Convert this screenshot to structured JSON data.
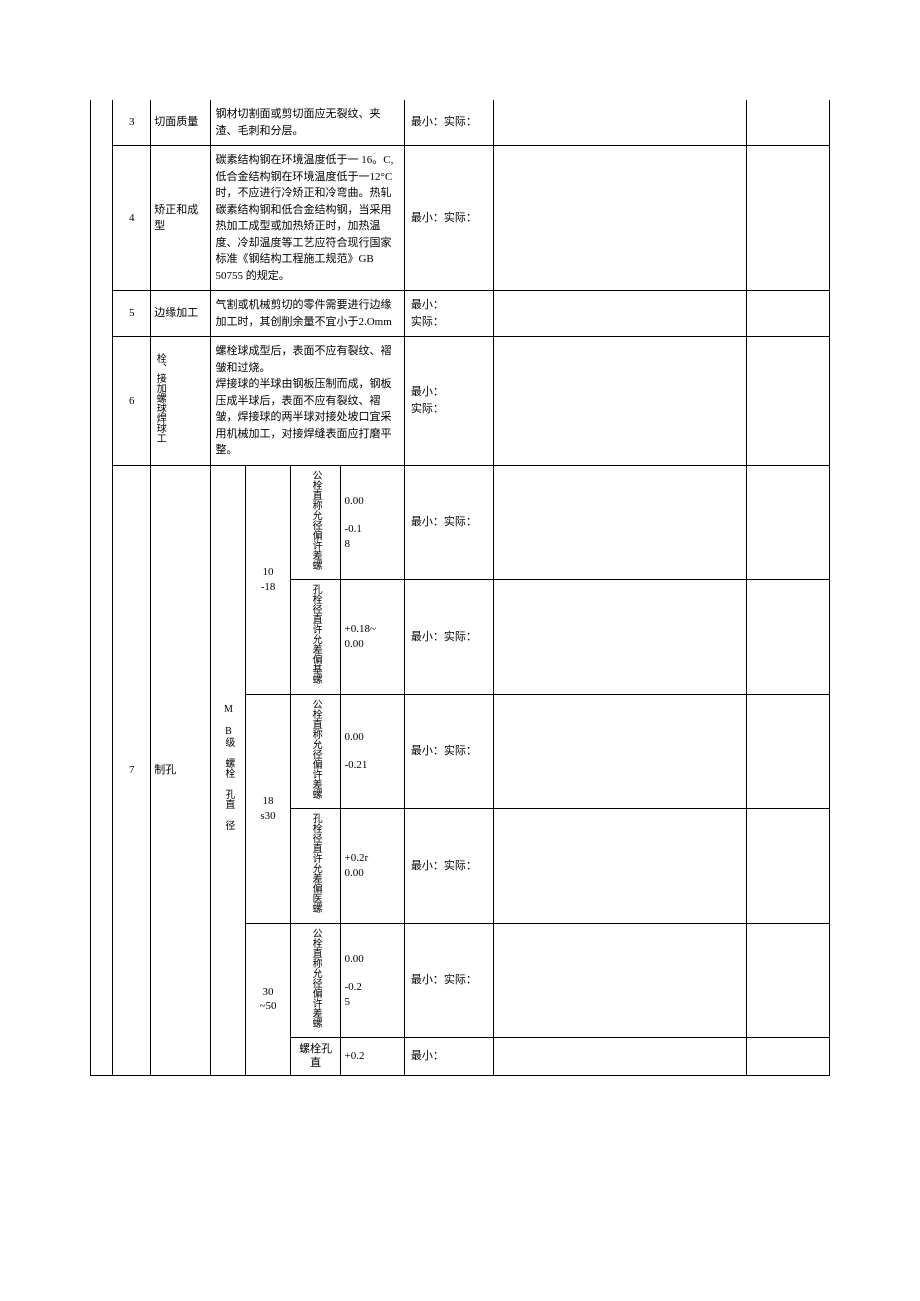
{
  "rows": {
    "r3": {
      "num": "3",
      "name": "切面质量",
      "desc": "钢材切割面或剪切面应无裂纹、夹渣、毛刺和分层。",
      "req": "最小：实际："
    },
    "r4": {
      "num": "4",
      "name": "矫正和成型",
      "desc": "碳素结构钢在环境温度低于一 16。C,低合金结构钢在环境温度低于一12°C 时，不应进行冷矫正和冷弯曲。热轧碳素结构钢和低合金结构钢，当采用热加工成型或加热矫正时，加热温度、冷却温度等工艺应符合现行国家标准《钢结构工程施工规范》GB\n50755 的规定。",
      "req": "最小：实际："
    },
    "r5": {
      "num": "5",
      "name": "边缘加工",
      "desc": "气割或机械剪切的零件需要进行边缘加工时，其创削余量不宜小于2.Omm",
      "req": "最小：\n实际："
    },
    "r6": {
      "num": "6",
      "name": "栓、接加螺球焊球工",
      "desc": "螺栓球成型后，表面不应有裂纹、褶皱和过烧。\n焊接球的半球由钢板压制而成，钢板压成半球后，表面不应有裂纹、褶皱，焊接球的两半球对接处坡口宜采用机械加工，对接焊缝表面应打磨平整。",
      "req": "最小：\n实际："
    },
    "r7": {
      "num": "7",
      "name": "制孔",
      "group_label": "M B级 螺栓 孔直 径",
      "ranges": {
        "a": {
          "range": "10\n-18",
          "d1": {
            "label": "公栓直称允径偏许差螺",
            "val": "0.00\n\n-0.1\n8",
            "req": "最小：实际："
          },
          "d2": {
            "label": "孔栓径直许允差偏基螺",
            "val": "+0.18~\n0.00",
            "req": "最小：实际："
          }
        },
        "b": {
          "range": "18\ns30",
          "d1": {
            "label": "公栓直称允径偏许差螺",
            "val": "0.00\n\n-0.21",
            "req": "最小：实际："
          },
          "d2": {
            "label": "孔栓径直许允差偏医螺",
            "val": "+0.2r\n0.00",
            "req": "最小：实际："
          }
        },
        "c": {
          "range": "30\n~50",
          "d1": {
            "label": "公栓直称允径偏许差螺",
            "val": "0.00\n\n-0.2\n5",
            "req": "最小：实际："
          },
          "d2": {
            "label": "螺栓孔直",
            "val": "+0.2",
            "req": "最小："
          }
        }
      }
    }
  }
}
